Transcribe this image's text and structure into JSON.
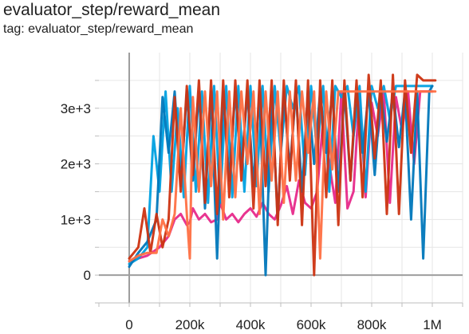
{
  "title": "evaluator_step/reward_mean",
  "subtitle": "tag: evaluator_step/reward_mean",
  "chart_data": {
    "type": "line",
    "title": "evaluator_step/reward_mean",
    "xlabel": "",
    "ylabel": "",
    "xlim": [
      -100000,
      1100000
    ],
    "ylim": [
      -500,
      4000
    ],
    "grid": true,
    "x_tick_labels": [
      "0",
      "200k",
      "400k",
      "600k",
      "800k",
      "1M"
    ],
    "x_ticks": [
      0,
      200000,
      400000,
      600000,
      800000,
      1000000
    ],
    "y_tick_labels": [
      "0",
      "1e+3",
      "2e+3",
      "3e+3"
    ],
    "y_ticks": [
      0,
      1000,
      2000,
      3000
    ],
    "series": [
      {
        "color": "#e7298a",
        "x": [
          0,
          30000,
          60000,
          100000,
          130000,
          150000,
          170000,
          190000,
          200000,
          210000,
          230000,
          250000,
          270000,
          290000,
          300000,
          320000,
          340000,
          360000,
          380000,
          400000,
          420000,
          440000,
          460000,
          480000,
          500000,
          520000,
          540000,
          560000,
          580000,
          600000,
          620000,
          640000,
          660000,
          680000,
          700000,
          720000,
          740000,
          760000,
          780000,
          800000,
          820000,
          840000,
          860000,
          880000,
          900000,
          920000,
          940000,
          960000,
          980000,
          1000000
        ],
        "y": [
          250,
          300,
          350,
          500,
          700,
          1000,
          1100,
          900,
          950,
          1200,
          1000,
          1100,
          950,
          1000,
          1300,
          1000,
          1100,
          950,
          1100,
          1200,
          1050,
          1300,
          1100,
          1000,
          1250,
          1600,
          1100,
          1700,
          1300,
          1200,
          1500,
          2800,
          2000,
          1300,
          3300,
          1200,
          1500,
          3300,
          1400,
          3100,
          2500,
          3300,
          1300,
          3200,
          2600,
          3300,
          2000,
          3300,
          3300,
          3300
        ]
      },
      {
        "color": "#00a0e0",
        "x": [
          0,
          30000,
          60000,
          80000,
          100000,
          120000,
          140000,
          160000,
          180000,
          200000,
          220000,
          240000,
          260000,
          280000,
          300000,
          320000,
          340000,
          360000,
          380000,
          400000,
          420000,
          440000,
          460000,
          480000,
          500000,
          520000,
          540000,
          560000,
          580000,
          600000,
          620000,
          640000,
          660000,
          680000,
          700000,
          720000,
          740000,
          760000,
          780000,
          800000,
          820000,
          840000,
          860000,
          880000,
          900000,
          920000,
          940000,
          960000,
          980000,
          1000000
        ],
        "y": [
          200,
          300,
          500,
          2500,
          1500,
          3300,
          1500,
          3000,
          1400,
          3400,
          1500,
          3300,
          1300,
          3400,
          1300,
          3400,
          1400,
          3400,
          1500,
          3400,
          1600,
          3400,
          1500,
          3400,
          2200,
          3400,
          3000,
          3400,
          1800,
          3400,
          2200,
          3400,
          1500,
          3400,
          3200,
          3400,
          2500,
          3400,
          1500,
          3400,
          3000,
          3400,
          2800,
          3400,
          3400,
          3400,
          3400,
          3400,
          3400,
          3400
        ]
      },
      {
        "color": "#0077bb",
        "x": [
          0,
          30000,
          60000,
          90000,
          110000,
          130000,
          150000,
          170000,
          190000,
          210000,
          230000,
          250000,
          270000,
          290000,
          310000,
          330000,
          350000,
          370000,
          390000,
          410000,
          430000,
          450000,
          470000,
          490000,
          510000,
          530000,
          550000,
          570000,
          590000,
          610000,
          630000,
          650000,
          670000,
          690000,
          710000,
          730000,
          750000,
          770000,
          790000,
          810000,
          830000,
          850000,
          870000,
          890000,
          910000,
          930000,
          950000,
          970000,
          990000,
          1000000
        ],
        "y": [
          150,
          400,
          600,
          1000,
          3200,
          2200,
          3300,
          1600,
          3300,
          1700,
          3300,
          1200,
          3300,
          300,
          3300,
          1700,
          3300,
          1900,
          3300,
          1600,
          3300,
          0,
          3300,
          1000,
          3300,
          1900,
          3300,
          1500,
          3300,
          2000,
          3300,
          2200,
          3300,
          1500,
          3300,
          1700,
          3300,
          2200,
          3300,
          1800,
          3300,
          2400,
          3300,
          2300,
          3300,
          1000,
          3300,
          300,
          3300,
          3400
        ]
      },
      {
        "color": "#cc3311",
        "x": [
          0,
          30000,
          50000,
          70000,
          90000,
          110000,
          130000,
          150000,
          170000,
          190000,
          210000,
          230000,
          250000,
          270000,
          290000,
          310000,
          330000,
          350000,
          370000,
          390000,
          410000,
          430000,
          450000,
          470000,
          490000,
          510000,
          530000,
          550000,
          570000,
          590000,
          610000,
          630000,
          650000,
          670000,
          690000,
          710000,
          730000,
          750000,
          770000,
          790000,
          810000,
          830000,
          850000,
          870000,
          890000,
          910000,
          930000,
          950000,
          970000,
          990000,
          1010000
        ],
        "y": [
          300,
          500,
          1200,
          400,
          1100,
          500,
          1000,
          3200,
          1500,
          3400,
          1800,
          3500,
          1300,
          3500,
          1100,
          3500,
          1400,
          3500,
          1700,
          3500,
          1200,
          3500,
          1600,
          3500,
          900,
          3500,
          1700,
          3500,
          900,
          3500,
          0,
          3500,
          1400,
          3500,
          900,
          3500,
          1700,
          3500,
          1400,
          3600,
          2100,
          3500,
          1100,
          3600,
          1100,
          3500,
          2200,
          3600,
          3500,
          3500,
          3500
        ]
      },
      {
        "color": "#ff7043",
        "x": [
          0,
          30000,
          60000,
          90000,
          110000,
          130000,
          150000,
          170000,
          190000,
          200000,
          210000,
          230000,
          250000,
          270000,
          290000,
          310000,
          330000,
          350000,
          370000,
          390000,
          410000,
          430000,
          450000,
          470000,
          490000,
          510000,
          530000,
          550000,
          570000,
          590000,
          610000,
          630000,
          650000,
          670000,
          690000,
          720000,
          750000,
          780000,
          810000,
          840000,
          870000,
          900000,
          930000,
          960000,
          990000,
          1010000
        ],
        "y": [
          250,
          350,
          400,
          400,
          1000,
          700,
          1100,
          3000,
          1100,
          300,
          3200,
          1500,
          3300,
          1600,
          3300,
          1000,
          3300,
          1400,
          3300,
          2000,
          3300,
          1100,
          3300,
          1700,
          3300,
          1300,
          3300,
          1700,
          3300,
          2200,
          3300,
          300,
          3300,
          1900,
          3300,
          3300,
          3300,
          3300,
          3300,
          3300,
          3300,
          3300,
          3300,
          3300,
          3300,
          3300
        ]
      }
    ]
  }
}
